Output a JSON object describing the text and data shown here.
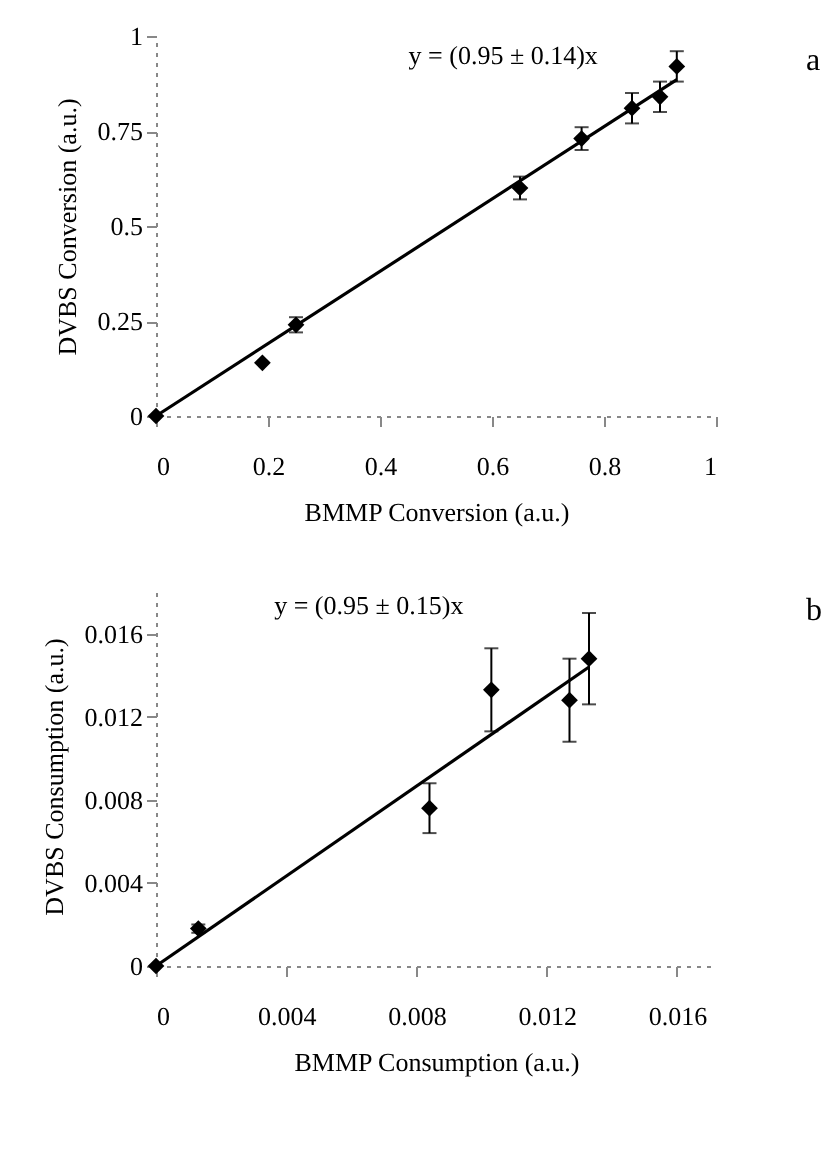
{
  "chart_data": [
    {
      "type": "scatter",
      "xlabel": "BMMP Conversion  (a.u.)",
      "ylabel": "DVBS Conversion  (a.u.)",
      "xlim": [
        0,
        1
      ],
      "ylim": [
        0,
        1
      ],
      "xticks": [
        0,
        0.2,
        0.4,
        0.6,
        0.8,
        1
      ],
      "yticks": [
        0,
        0.25,
        0.5,
        0.75,
        1
      ],
      "annotations": [
        "y = (0.95 ± 0.14)x",
        "a"
      ],
      "series": [
        {
          "color": "#000000",
          "marker": "diamond",
          "x": [
            0,
            0.19,
            0.25,
            0.65,
            0.76,
            0.85,
            0.9,
            0.93
          ],
          "values": [
            0,
            0.14,
            0.24,
            0.6,
            0.73,
            0.81,
            0.84,
            0.92
          ],
          "errors": [
            null,
            null,
            0.02,
            0.03,
            0.03,
            0.04,
            0.04,
            0.04
          ]
        },
        {
          "type": "line",
          "color": "#000000",
          "x": [
            0,
            0.93
          ],
          "values": [
            0,
            0.885
          ]
        }
      ]
    },
    {
      "type": "scatter",
      "xlabel": "BMMP  Consumption  (a.u.)",
      "ylabel": "DVBS Consumption  (a.u.)",
      "xlim": [
        0,
        0.0172
      ],
      "ylim": [
        0,
        0.0183
      ],
      "xticks": [
        0,
        0.004,
        0.008,
        0.012,
        0.016
      ],
      "yticks": [
        0,
        0.004,
        0.008,
        0.012,
        0.016
      ],
      "annotations": [
        "y = (0.95 ± 0.15)x",
        "b"
      ],
      "series": [
        {
          "color": "#000000",
          "marker": "diamond",
          "x": [
            0,
            0.0013,
            0.0084,
            0.0103,
            0.0127,
            0.0133
          ],
          "values": [
            0,
            0.0018,
            0.0076,
            0.0133,
            0.0128,
            0.0148
          ],
          "errors": [
            null,
            0.0002,
            0.0012,
            0.002,
            0.002,
            0.0022
          ]
        },
        {
          "type": "line",
          "color": "#000000",
          "x": [
            0,
            0.0133
          ],
          "values": [
            0,
            0.0144
          ]
        }
      ]
    }
  ]
}
